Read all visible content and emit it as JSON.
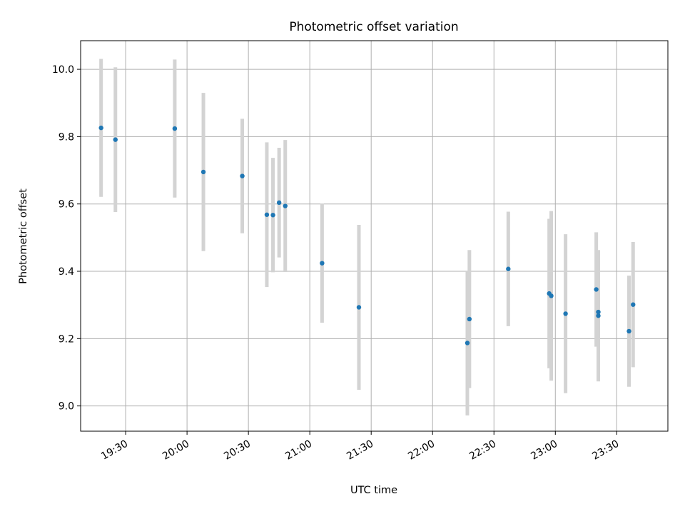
{
  "chart_data": {
    "type": "scatter",
    "title": "Photometric offset variation",
    "xlabel": "UTC time",
    "ylabel": "Photometric offset",
    "xlim": [
      "19:08",
      "23:55"
    ],
    "ylim": [
      8.925,
      10.085
    ],
    "xticks": [
      "19:30",
      "20:00",
      "20:30",
      "21:00",
      "21:30",
      "22:00",
      "22:30",
      "23:00",
      "23:30"
    ],
    "yticks": [
      "9.0",
      "9.2",
      "9.4",
      "9.6",
      "9.8",
      "10.0"
    ],
    "grid": true,
    "colors": {
      "point": "#1f77b4",
      "errorbar": "#d3d3d3",
      "grid": "#b0b0b0"
    },
    "series": [
      {
        "points": [
          {
            "x": "19:18",
            "y": 9.826,
            "yerr": 0.205
          },
          {
            "x": "19:25",
            "y": 9.791,
            "yerr": 0.215
          },
          {
            "x": "19:54",
            "y": 9.824,
            "yerr": 0.205
          },
          {
            "x": "20:08",
            "y": 9.695,
            "yerr": 0.235
          },
          {
            "x": "20:27",
            "y": 9.683,
            "yerr": 0.17
          },
          {
            "x": "20:39",
            "y": 9.568,
            "yerr": 0.215
          },
          {
            "x": "20:42",
            "y": 9.567,
            "yerr": 0.17
          },
          {
            "x": "20:45",
            "y": 9.604,
            "yerr": 0.163
          },
          {
            "x": "20:48",
            "y": 9.594,
            "yerr": 0.196
          },
          {
            "x": "21:06",
            "y": 9.424,
            "yerr": 0.177
          },
          {
            "x": "21:24",
            "y": 9.293,
            "yerr": 0.245
          },
          {
            "x": "22:17",
            "y": 9.187,
            "yerr": 0.215
          },
          {
            "x": "22:18",
            "y": 9.258,
            "yerr": 0.205
          },
          {
            "x": "22:37",
            "y": 9.407,
            "yerr": 0.17
          },
          {
            "x": "22:57",
            "y": 9.334,
            "yerr": 0.222
          },
          {
            "x": "22:58",
            "y": 9.327,
            "yerr": 0.252
          },
          {
            "x": "23:05",
            "y": 9.274,
            "yerr": 0.236
          },
          {
            "x": "23:20",
            "y": 9.346,
            "yerr": 0.17
          },
          {
            "x": "23:21",
            "y": 9.268,
            "yerr": 0.195
          },
          {
            "x": "23:21",
            "y": 9.279,
            "yerr": 0.153
          },
          {
            "x": "23:36",
            "y": 9.222,
            "yerr": 0.165
          },
          {
            "x": "23:38",
            "y": 9.301,
            "yerr": 0.186
          }
        ]
      }
    ]
  }
}
